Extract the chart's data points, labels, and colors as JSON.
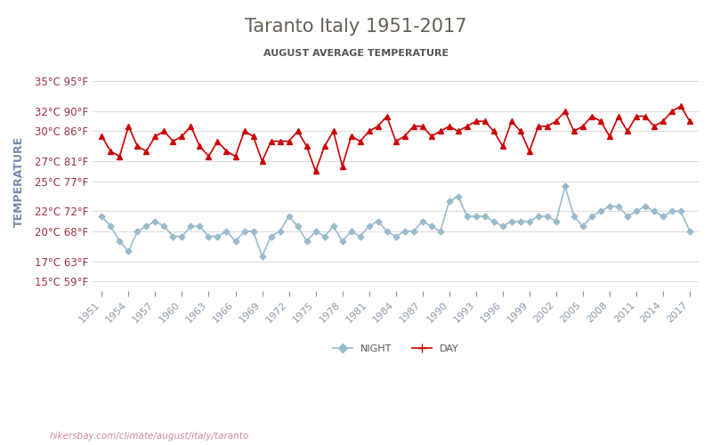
{
  "title": "Taranto Italy 1951-2017",
  "subtitle": "AUGUST AVERAGE TEMPERATURE",
  "xlabel_url": "hikersbay.com/climate/august/italy/taranto",
  "ylabel": "TEMPERATURE",
  "years": [
    1951,
    1952,
    1953,
    1954,
    1955,
    1956,
    1957,
    1958,
    1959,
    1960,
    1961,
    1962,
    1963,
    1964,
    1965,
    1966,
    1967,
    1968,
    1969,
    1970,
    1971,
    1972,
    1973,
    1974,
    1975,
    1976,
    1977,
    1978,
    1979,
    1980,
    1981,
    1982,
    1983,
    1984,
    1985,
    1986,
    1987,
    1988,
    1989,
    1990,
    1991,
    1992,
    1993,
    1994,
    1995,
    1996,
    1997,
    1998,
    1999,
    2000,
    2001,
    2002,
    2003,
    2004,
    2005,
    2006,
    2007,
    2008,
    2009,
    2010,
    2011,
    2012,
    2013,
    2014,
    2015,
    2016,
    2017
  ],
  "day_temps": [
    29.5,
    28.0,
    27.5,
    30.5,
    28.5,
    28.0,
    29.5,
    30.0,
    29.0,
    29.5,
    30.5,
    28.5,
    27.5,
    29.0,
    28.0,
    27.5,
    30.0,
    29.5,
    27.0,
    29.0,
    29.0,
    29.0,
    30.0,
    28.5,
    26.0,
    28.5,
    30.0,
    26.5,
    29.5,
    29.0,
    30.0,
    30.5,
    31.5,
    29.0,
    29.5,
    30.5,
    30.5,
    29.5,
    30.0,
    30.5,
    30.0,
    30.5,
    31.0,
    31.0,
    30.0,
    28.5,
    31.0,
    30.0,
    28.0,
    30.5,
    30.5,
    31.0,
    32.0,
    30.0,
    30.5,
    31.5,
    31.0,
    29.5,
    31.5,
    30.0,
    31.5,
    31.5,
    30.5,
    31.0,
    32.0,
    32.5,
    31.0
  ],
  "night_temps": [
    21.5,
    20.5,
    19.0,
    18.0,
    20.0,
    20.5,
    21.0,
    20.5,
    19.5,
    19.5,
    20.5,
    20.5,
    19.5,
    19.5,
    20.0,
    19.0,
    20.0,
    20.0,
    17.5,
    19.5,
    20.0,
    21.5,
    20.5,
    19.0,
    20.0,
    19.5,
    20.5,
    19.0,
    20.0,
    19.5,
    20.5,
    21.0,
    20.0,
    19.5,
    20.0,
    20.0,
    21.0,
    20.5,
    20.0,
    23.0,
    23.5,
    21.5,
    21.5,
    21.5,
    21.0,
    20.5,
    21.0,
    21.0,
    21.0,
    21.5,
    21.5,
    21.0,
    24.5,
    21.5,
    20.5,
    21.5,
    22.0,
    22.5,
    22.5,
    21.5,
    22.0,
    22.5,
    22.0,
    21.5,
    22.0,
    22.0,
    20.0
  ],
  "day_color": "#cc0000",
  "night_color": "#99bbcc",
  "title_color": "#666055",
  "subtitle_color": "#555555",
  "ylabel_color": "#7788aa",
  "tick_label_color": "#993344",
  "xtick_color": "#8899aa",
  "grid_color": "#dddddd",
  "url_color": "#cc8899",
  "bg_color": "#ffffff",
  "yticks_c": [
    15,
    17,
    20,
    22,
    25,
    27,
    30,
    32,
    35
  ],
  "yticks_f": [
    59,
    63,
    68,
    72,
    77,
    81,
    86,
    90,
    95
  ],
  "ylim": [
    14,
    36
  ],
  "legend_night": "NIGHT",
  "legend_day": "DAY"
}
